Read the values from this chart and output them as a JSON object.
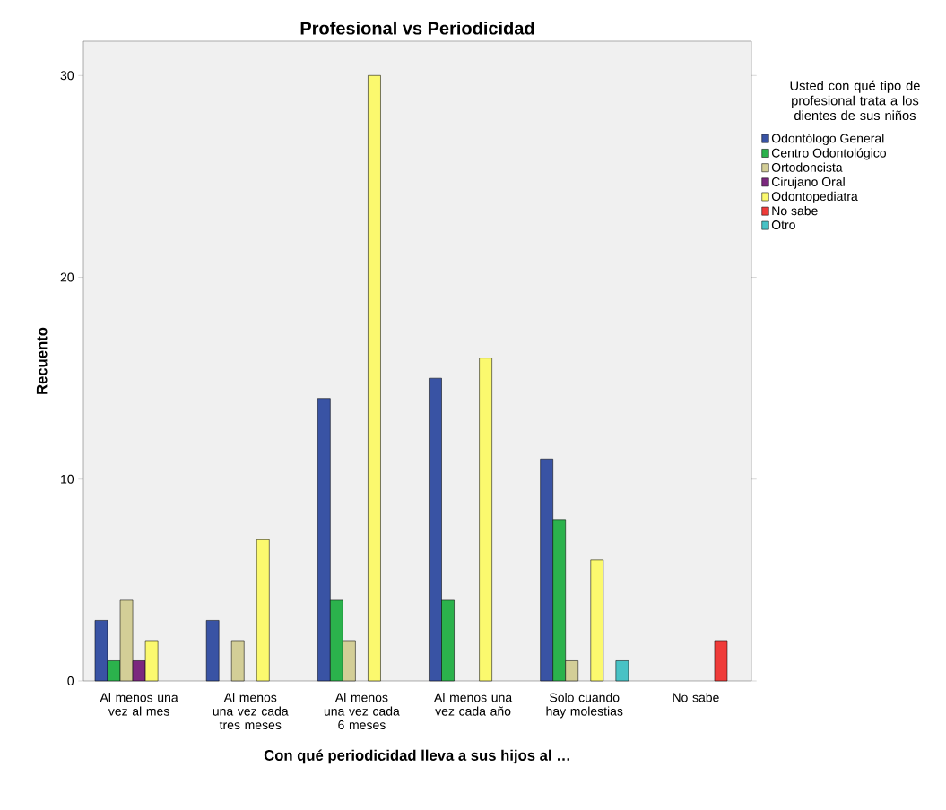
{
  "chart_data": {
    "type": "bar",
    "title": "Profesional vs Periodicidad",
    "xlabel": "Con qué periodicidad lleva a sus hijos al …",
    "ylabel": "Recuento",
    "legend_title": "Usted con qué tipo de profesional trata a los dientes de sus niños",
    "categories": [
      "Al menos una vez al mes",
      "Al menos una vez cada tres meses",
      "Al menos una vez cada 6 meses",
      "Al menos una vez cada año",
      "Solo cuando hay molestias",
      "No sabe"
    ],
    "series": [
      {
        "name": "Odontólogo General",
        "color": "#3953a4",
        "values": [
          3,
          3,
          14,
          15,
          11,
          null
        ]
      },
      {
        "name": "Centro Odontológico",
        "color": "#2bb24c",
        "values": [
          1,
          null,
          4,
          4,
          8,
          null
        ]
      },
      {
        "name": "Ortodoncista",
        "color": "#d3ce97",
        "values": [
          4,
          2,
          2,
          null,
          1,
          null
        ]
      },
      {
        "name": "Cirujano Oral",
        "color": "#7b287e",
        "values": [
          1,
          null,
          null,
          null,
          null,
          null
        ]
      },
      {
        "name": "Odontopediatra",
        "color": "#fbf96e",
        "values": [
          2,
          7,
          30,
          16,
          6,
          null
        ]
      },
      {
        "name": "No sabe",
        "color": "#ef3b39",
        "values": [
          null,
          null,
          null,
          null,
          null,
          2
        ]
      },
      {
        "name": "Otro",
        "color": "#48c2c5",
        "values": [
          null,
          null,
          null,
          null,
          1,
          null
        ]
      }
    ],
    "ylim": [
      0,
      31.7
    ],
    "yticks": [
      0,
      10,
      20,
      30
    ],
    "grid": false,
    "legend": "right"
  }
}
